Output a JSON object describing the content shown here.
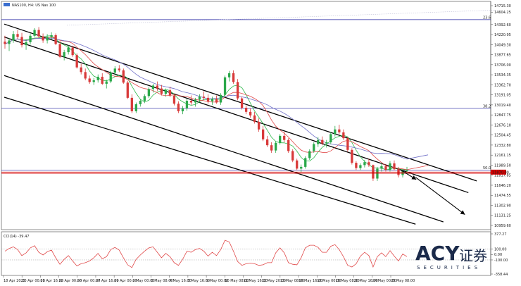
{
  "header": {
    "symbol": "NAS100, H4: US Nas 100"
  },
  "chart_data": {
    "type": "candlestick",
    "price_axis": {
      "ticks": [
        "14715.30",
        "14604.25",
        "14392.60",
        "14220.95",
        "14049.30",
        "13877.65",
        "13706.00",
        "13534.35",
        "13362.70",
        "13191.05",
        "13019.40",
        "12847.75",
        "12676.10",
        "12504.45",
        "12332.80",
        "12161.15",
        "11989.50",
        "11817.85",
        "11646.20",
        "11474.55",
        "11302.90",
        "11131.25",
        "10959.60"
      ],
      "ylim": [
        10959.6,
        14715.3
      ]
    },
    "time_axis": {
      "labels": [
        "18 Apr 2022",
        "20 Apr 00:00",
        "21 Apr 16:00",
        "22 Apr 00:00",
        "26 Apr 00:00",
        "27 Apr 16:00",
        "29 Apr 00:00",
        "2 May 00:00",
        "3 May 08:00",
        "4 May 16:00",
        "5 May 16:00",
        "9 May 00:00",
        "10 May 08:00",
        "11 May 16:00",
        "12 May 20:00",
        "13 May 08:00",
        "16 May 16:00",
        "18 May 00:00",
        "19 May 08:00",
        "20 May 16:00",
        "24 May 00:00",
        "25 May 08:00"
      ]
    },
    "fib_levels": [
      {
        "label": "23.6",
        "price": 14476,
        "color": "#2020a0"
      },
      {
        "label": "38.2",
        "price": 12960,
        "color": "#2020a0"
      },
      {
        "label": "50.0",
        "price": 11904,
        "color": "#2020a0"
      }
    ],
    "current_price": {
      "value": "11870.00",
      "color": "#d40000"
    },
    "channel_lines": [
      {
        "from": [
          0,
          14400
        ],
        "to": [
          680,
          11720
        ]
      },
      {
        "from": [
          0,
          14180
        ],
        "to": [
          668,
          11520
        ]
      },
      {
        "from": [
          0,
          13520
        ],
        "to": [
          632,
          11020
        ]
      },
      {
        "from": [
          0,
          13150
        ],
        "to": [
          592,
          10980
        ]
      }
    ],
    "projection_arrows": [
      {
        "from": [
          592,
          11782
        ],
        "to": [
          663,
          11145
        ]
      },
      {
        "from": [
          570,
          11912
        ],
        "to": [
          593,
          11744
        ]
      }
    ],
    "series": [
      {
        "name": "MA fast",
        "color": "#2db84a"
      },
      {
        "name": "MA mid",
        "color": "#e04848"
      },
      {
        "name": "MA slow",
        "color": "#7070c8"
      }
    ],
    "ohlc": [
      [
        14100,
        14200,
        13980,
        14060
      ],
      [
        14060,
        14160,
        13940,
        14120
      ],
      [
        14120,
        14280,
        14080,
        14230
      ],
      [
        14230,
        14300,
        14150,
        14180
      ],
      [
        14180,
        14250,
        14000,
        14040
      ],
      [
        14040,
        14140,
        13960,
        14090
      ],
      [
        14090,
        14240,
        14050,
        14200
      ],
      [
        14200,
        14330,
        14180,
        14300
      ],
      [
        14300,
        14350,
        14160,
        14190
      ],
      [
        14190,
        14240,
        14080,
        14120
      ],
      [
        14120,
        14230,
        14070,
        14180
      ],
      [
        14180,
        14260,
        14140,
        14210
      ],
      [
        14210,
        14240,
        14040,
        14060
      ],
      [
        14060,
        14110,
        13820,
        13840
      ],
      [
        13840,
        13960,
        13780,
        13920
      ],
      [
        13920,
        14040,
        13880,
        14000
      ],
      [
        14000,
        14030,
        13840,
        13870
      ],
      [
        13870,
        13900,
        13640,
        13660
      ],
      [
        13660,
        13720,
        13540,
        13580
      ],
      [
        13580,
        13640,
        13440,
        13470
      ],
      [
        13470,
        13520,
        13380,
        13410
      ],
      [
        13410,
        13480,
        13360,
        13440
      ],
      [
        13440,
        13540,
        13400,
        13500
      ],
      [
        13500,
        13560,
        13360,
        13380
      ],
      [
        13380,
        13450,
        13300,
        13420
      ],
      [
        13420,
        13600,
        13390,
        13570
      ],
      [
        13570,
        13680,
        13520,
        13640
      ],
      [
        13640,
        13700,
        13580,
        13610
      ],
      [
        13610,
        13640,
        13380,
        13400
      ],
      [
        13400,
        13430,
        13120,
        13140
      ],
      [
        13140,
        13200,
        12880,
        12910
      ],
      [
        12910,
        13060,
        12880,
        13030
      ],
      [
        13030,
        13120,
        12990,
        13090
      ],
      [
        13090,
        13200,
        13050,
        13170
      ],
      [
        13170,
        13320,
        13140,
        13290
      ],
      [
        13290,
        13380,
        13230,
        13350
      ],
      [
        13350,
        13420,
        13260,
        13300
      ],
      [
        13300,
        13360,
        13180,
        13210
      ],
      [
        13210,
        13300,
        13160,
        13270
      ],
      [
        13270,
        13330,
        13150,
        13180
      ],
      [
        13180,
        13200,
        13010,
        13040
      ],
      [
        13040,
        13080,
        12880,
        12910
      ],
      [
        12910,
        13000,
        12860,
        12960
      ],
      [
        12960,
        13120,
        12920,
        13090
      ],
      [
        13090,
        13180,
        13020,
        13060
      ],
      [
        13060,
        13140,
        12990,
        13110
      ],
      [
        13110,
        13200,
        13060,
        13160
      ],
      [
        13160,
        13250,
        13100,
        13140
      ],
      [
        13140,
        13200,
        13040,
        13080
      ],
      [
        13080,
        13160,
        13020,
        13120
      ],
      [
        13120,
        13180,
        13040,
        13060
      ],
      [
        13060,
        13220,
        13020,
        13190
      ],
      [
        13190,
        13520,
        13160,
        13490
      ],
      [
        13490,
        13600,
        13420,
        13560
      ],
      [
        13560,
        13610,
        13380,
        13410
      ],
      [
        13410,
        13460,
        13100,
        13130
      ],
      [
        13130,
        13160,
        12940,
        12970
      ],
      [
        12970,
        13010,
        12860,
        12900
      ],
      [
        12900,
        12960,
        12800,
        12840
      ],
      [
        12840,
        12900,
        12700,
        12730
      ],
      [
        12730,
        12790,
        12560,
        12600
      ],
      [
        12600,
        12660,
        12400,
        12430
      ],
      [
        12430,
        12490,
        12300,
        12330
      ],
      [
        12330,
        12380,
        12200,
        12240
      ],
      [
        12240,
        12400,
        12200,
        12370
      ],
      [
        12370,
        12520,
        12340,
        12490
      ],
      [
        12490,
        12560,
        12380,
        12420
      ],
      [
        12420,
        12450,
        12200,
        12230
      ],
      [
        12230,
        12260,
        12040,
        12070
      ],
      [
        12070,
        12100,
        11900,
        11930
      ],
      [
        11930,
        12000,
        11860,
        11960
      ],
      [
        11960,
        12140,
        11930,
        12110
      ],
      [
        12110,
        12260,
        12080,
        12230
      ],
      [
        12230,
        12380,
        12200,
        12350
      ],
      [
        12350,
        12470,
        12300,
        12420
      ],
      [
        12420,
        12480,
        12330,
        12360
      ],
      [
        12360,
        12420,
        12290,
        12380
      ],
      [
        12380,
        12560,
        12350,
        12520
      ],
      [
        12520,
        12660,
        12480,
        12600
      ],
      [
        12600,
        12680,
        12520,
        12550
      ],
      [
        12550,
        12600,
        12420,
        12450
      ],
      [
        12450,
        12470,
        12220,
        12250
      ],
      [
        12250,
        12280,
        12000,
        12030
      ],
      [
        12030,
        12060,
        11900,
        11940
      ],
      [
        11940,
        12020,
        11900,
        11990
      ],
      [
        11990,
        12080,
        11950,
        12040
      ],
      [
        12040,
        12100,
        11960,
        11990
      ],
      [
        11990,
        12000,
        11720,
        11760
      ],
      [
        11760,
        11960,
        11720,
        11930
      ],
      [
        11930,
        12020,
        11880,
        11970
      ],
      [
        11970,
        12010,
        11880,
        11910
      ],
      [
        11910,
        12060,
        11880,
        12020
      ],
      [
        12020,
        12070,
        11900,
        11920
      ],
      [
        11920,
        11960,
        11780,
        11820
      ],
      [
        11820,
        11920,
        11780,
        11890
      ],
      [
        11890,
        11960,
        11850,
        11910
      ]
    ],
    "indicator": {
      "label": "CCI(14) -39.47",
      "ticks": [
        "377.27",
        "100.00",
        "0.00",
        "-100.00",
        "-358.44"
      ],
      "ylim": [
        -358.44,
        377.27
      ],
      "color": "#e04848",
      "values": [
        60,
        110,
        140,
        90,
        -20,
        30,
        120,
        160,
        40,
        -10,
        50,
        80,
        -60,
        -180,
        -90,
        -20,
        -120,
        -210,
        -170,
        -150,
        -120,
        -60,
        20,
        -80,
        -40,
        90,
        130,
        80,
        -60,
        -190,
        -240,
        -90,
        -10,
        60,
        120,
        140,
        40,
        -60,
        20,
        -40,
        -150,
        -200,
        -90,
        60,
        40,
        90,
        110,
        60,
        -30,
        40,
        -20,
        90,
        260,
        230,
        60,
        -130,
        -200,
        -170,
        -160,
        -170,
        -200,
        -190,
        -150,
        -150,
        30,
        120,
        30,
        -150,
        -180,
        -190,
        -60,
        120,
        170,
        170,
        130,
        40,
        40,
        150,
        180,
        90,
        -40,
        -200,
        -230,
        -170,
        -30,
        40,
        -20,
        -230,
        -40,
        30,
        -40,
        70,
        -30,
        -120,
        10,
        -39
      ]
    }
  },
  "branding": {
    "logo_text": "ACY",
    "logo_cn": "证券",
    "logo_sub": "SECURITIES"
  }
}
